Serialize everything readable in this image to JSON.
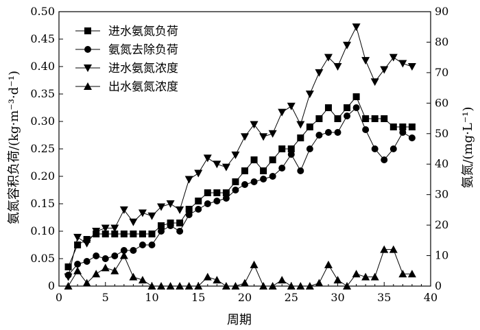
{
  "chart_data": {
    "type": "line",
    "title": "",
    "xlabel": "周期",
    "ylabel_left": "氨氮容积负荷/(kg·m⁻³·d⁻¹)",
    "ylabel_right": "氨氮/(mg·L⁻¹)",
    "xlim": [
      0,
      40
    ],
    "ylim_left": [
      0,
      0.5
    ],
    "ylim_right": [
      0,
      90
    ],
    "x_ticks": [
      "0",
      "5",
      "10",
      "15",
      "20",
      "25",
      "30",
      "35",
      "40"
    ],
    "y_left_ticks": [
      "0",
      "0.05",
      "0.10",
      "0.15",
      "0.20",
      "0.25",
      "0.30",
      "0.35",
      "0.40",
      "0.45",
      "0.50"
    ],
    "y_right_ticks": [
      "0",
      "10",
      "20",
      "30",
      "40",
      "50",
      "60",
      "70",
      "80",
      "90"
    ],
    "legend_position": "top-left",
    "grid": false,
    "series": [
      {
        "name": "进水氨氮负荷",
        "axis": "left",
        "marker": "square",
        "x": [
          1,
          2,
          3,
          4,
          5,
          6,
          7,
          8,
          9,
          10,
          11,
          12,
          13,
          14,
          15,
          16,
          17,
          18,
          19,
          20,
          21,
          22,
          23,
          24,
          25,
          26,
          27,
          28,
          29,
          30,
          31,
          32,
          33,
          34,
          35,
          36,
          37,
          38
        ],
        "values": [
          0.035,
          0.075,
          0.085,
          0.095,
          0.095,
          0.095,
          0.095,
          0.095,
          0.095,
          0.095,
          0.11,
          0.115,
          0.115,
          0.14,
          0.155,
          0.17,
          0.17,
          0.17,
          0.19,
          0.21,
          0.23,
          0.21,
          0.23,
          0.25,
          0.25,
          0.27,
          0.29,
          0.305,
          0.325,
          0.305,
          0.325,
          0.345,
          0.305,
          0.305,
          0.305,
          0.29,
          0.29,
          0.29
        ]
      },
      {
        "name": "氨氮去除负荷",
        "axis": "left",
        "marker": "circle",
        "x": [
          1,
          2,
          3,
          4,
          5,
          6,
          7,
          8,
          9,
          10,
          11,
          12,
          13,
          14,
          15,
          16,
          17,
          18,
          19,
          20,
          21,
          22,
          23,
          24,
          25,
          26,
          27,
          28,
          29,
          30,
          31,
          32,
          33,
          34,
          35,
          36,
          37,
          38
        ],
        "values": [
          0.02,
          0.04,
          0.045,
          0.055,
          0.05,
          0.055,
          0.065,
          0.065,
          0.075,
          0.075,
          0.1,
          0.11,
          0.1,
          0.13,
          0.14,
          0.15,
          0.155,
          0.16,
          0.175,
          0.185,
          0.19,
          0.195,
          0.2,
          0.215,
          0.24,
          0.21,
          0.25,
          0.275,
          0.28,
          0.28,
          0.31,
          0.325,
          0.285,
          0.25,
          0.23,
          0.25,
          0.28,
          0.27
        ]
      },
      {
        "name": "进水氨氮浓度",
        "axis": "right",
        "marker": "triangle-down",
        "x": [
          1,
          2,
          3,
          4,
          5,
          6,
          7,
          8,
          9,
          10,
          11,
          12,
          13,
          14,
          15,
          16,
          17,
          18,
          19,
          20,
          21,
          22,
          23,
          24,
          25,
          26,
          27,
          28,
          29,
          30,
          31,
          32,
          33,
          34,
          35,
          36,
          37,
          38
        ],
        "values": [
          3,
          16,
          14,
          18,
          19,
          19,
          25,
          21,
          24,
          23,
          26,
          27,
          25,
          35,
          37,
          42,
          40,
          39,
          43,
          49,
          53,
          49,
          50,
          57,
          59,
          53,
          63,
          70,
          75,
          72,
          79,
          85,
          74,
          67,
          71,
          75,
          73,
          72
        ]
      },
      {
        "name": "出水氨氮浓度",
        "axis": "right",
        "marker": "triangle-up",
        "x": [
          1,
          2,
          3,
          4,
          5,
          6,
          7,
          8,
          9,
          10,
          11,
          12,
          13,
          14,
          15,
          16,
          17,
          18,
          19,
          20,
          21,
          22,
          23,
          24,
          25,
          26,
          27,
          28,
          29,
          30,
          31,
          32,
          33,
          34,
          35,
          36,
          37,
          38
        ],
        "values": [
          0,
          5,
          1,
          4,
          6,
          5,
          10,
          3,
          2,
          0,
          0,
          0,
          0,
          0,
          0,
          3,
          2,
          0,
          0,
          1,
          7,
          0,
          0,
          2,
          0,
          0,
          0,
          1,
          7,
          2,
          0,
          4,
          3,
          3,
          12,
          12,
          4,
          4
        ]
      }
    ]
  }
}
